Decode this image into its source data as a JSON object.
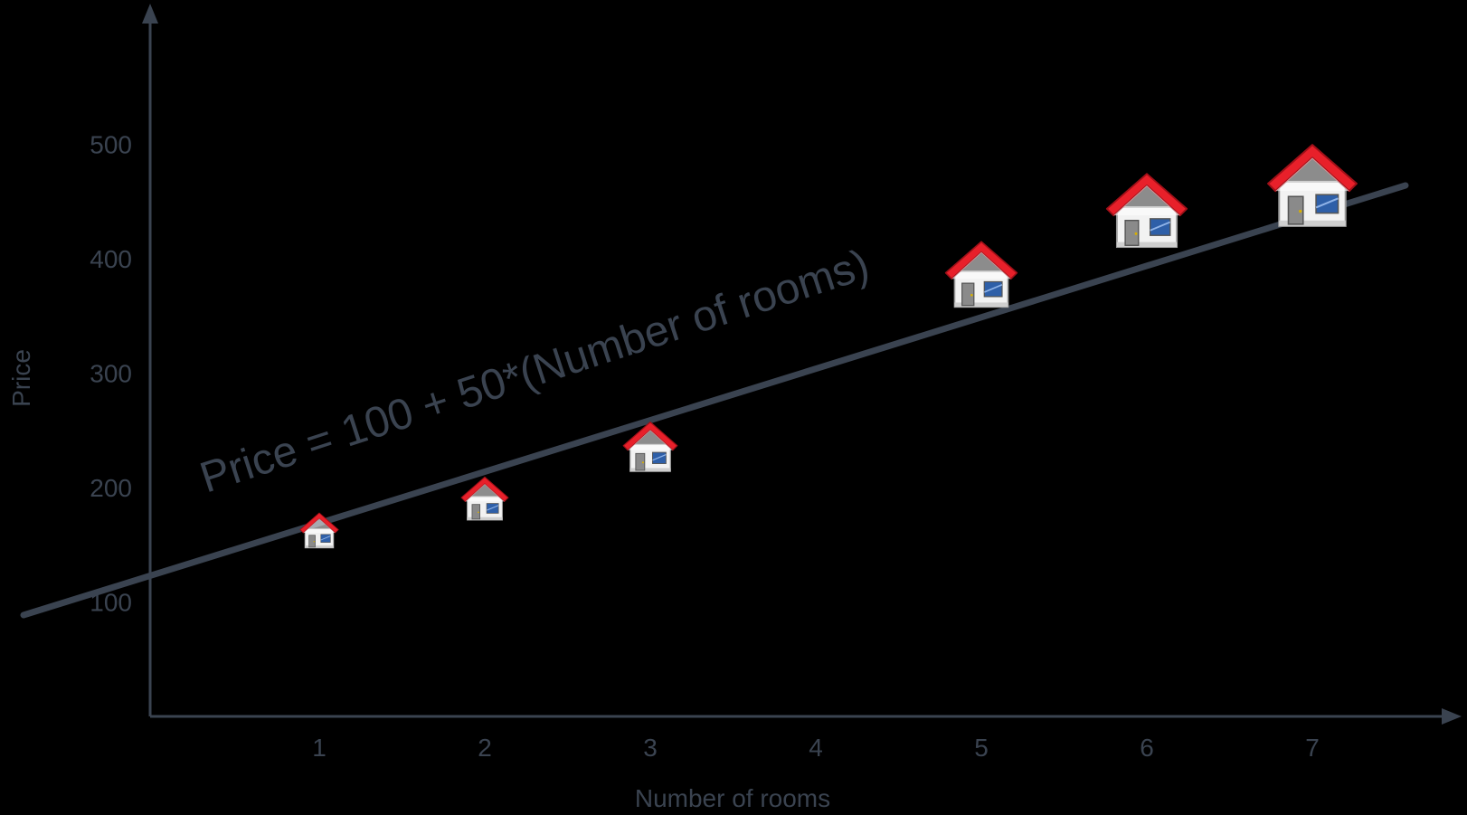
{
  "chart_data": {
    "type": "scatter",
    "xlabel": "Number of rooms",
    "ylabel": "Price",
    "x_ticks": [
      "1",
      "2",
      "3",
      "4",
      "5",
      "6",
      "7"
    ],
    "y_ticks": [
      "100",
      "200",
      "300",
      "400",
      "500"
    ],
    "xlim": [
      0.1,
      8.1
    ],
    "ylim": [
      5,
      530
    ],
    "annotation": "Price = 100 + 50*(Number of rooms)",
    "line": {
      "intercept": 100,
      "slope": 50,
      "x_range": [
        -0.8,
        7.55
      ]
    },
    "points": [
      {
        "x": 1,
        "y": 150,
        "marker": "house-icon"
      },
      {
        "x": 2,
        "y": 175,
        "marker": "house-icon"
      },
      {
        "x": 3,
        "y": 218,
        "marker": "house-icon"
      },
      {
        "x": 5,
        "y": 363,
        "marker": "house-icon"
      },
      {
        "x": 6,
        "y": 416,
        "marker": "house-icon"
      },
      {
        "x": 7,
        "y": 435,
        "marker": "house-icon"
      }
    ],
    "colors": {
      "axis": "#3a4350",
      "text": "#3a4350",
      "roof": "#e8202a",
      "wall": "#f2f2f2",
      "window": "#2e5fa8",
      "door": "#8a8a8a"
    }
  }
}
